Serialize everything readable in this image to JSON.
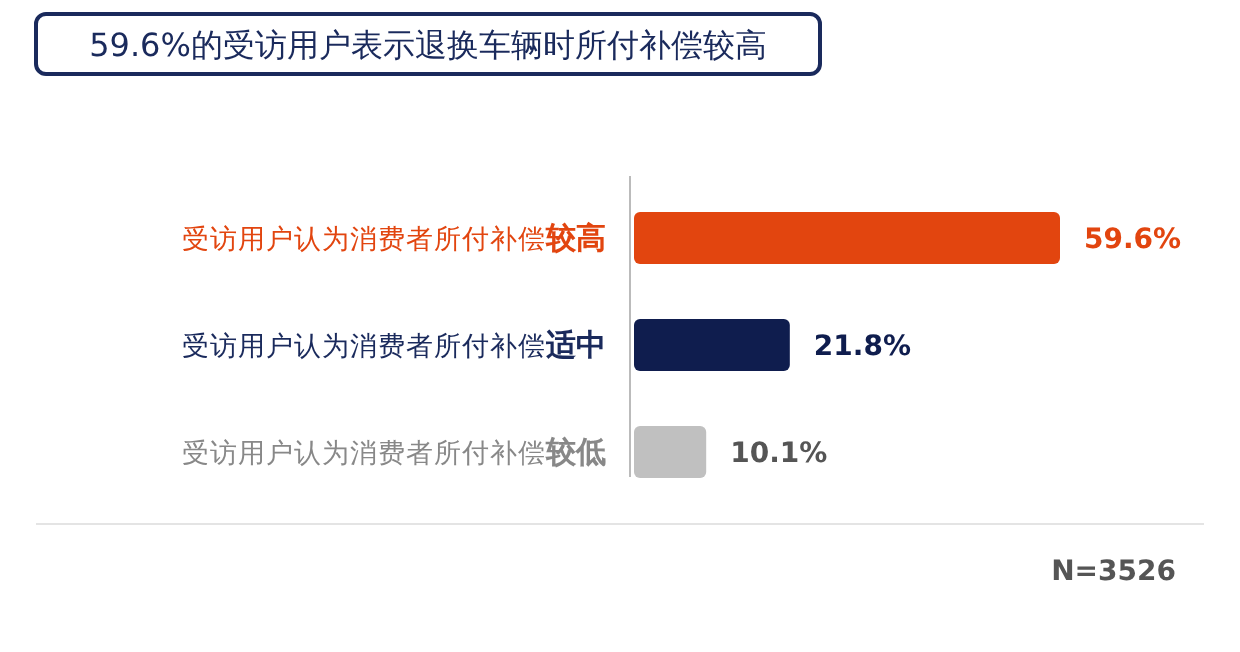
{
  "chart_data": {
    "type": "bar",
    "orientation": "horizontal",
    "title": "59.6%的受访用户表示退换车辆时所付补偿较高",
    "categories": [
      "受访用户认为消费者所付补偿较高",
      "受访用户认为消费者所付补偿适中",
      "受访用户认为消费者所付补偿较低"
    ],
    "values": [
      59.6,
      21.8,
      10.1
    ],
    "colors": [
      "#e2450f",
      "#0f1d4e",
      "#c0c0c0"
    ],
    "value_labels": [
      "59.6%",
      "21.8%",
      "10.1%"
    ],
    "annotations": [
      "N=3526"
    ]
  }
}
